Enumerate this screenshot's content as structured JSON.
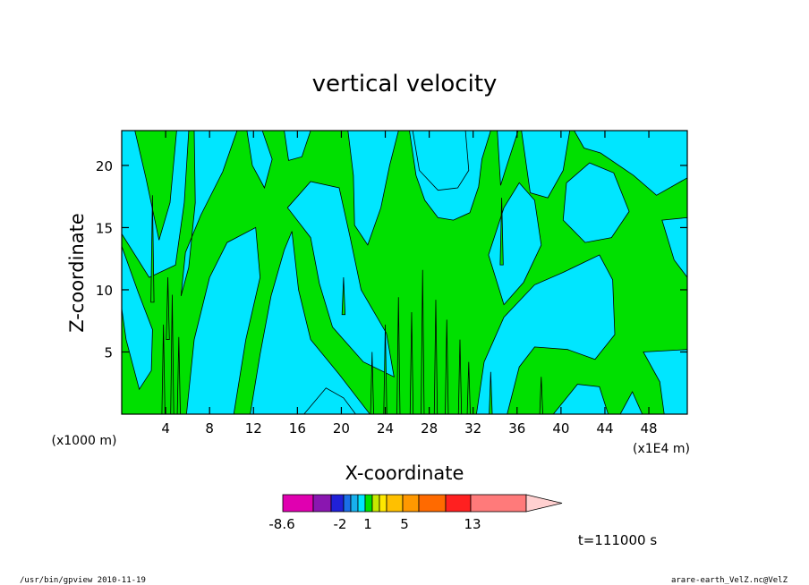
{
  "chart_data": {
    "type": "heatmap",
    "title": "vertical velocity",
    "xlabel": "X-coordinate",
    "ylabel": "Z-coordinate",
    "x_unit_label": "(x1E4 m)",
    "y_unit_label": "(x1000 m)",
    "xlim": [
      0,
      51.5
    ],
    "ylim": [
      0,
      22.8
    ],
    "x_ticks": [
      "4",
      "8",
      "12",
      "16",
      "20",
      "24",
      "28",
      "32",
      "36",
      "40",
      "44",
      "48"
    ],
    "y_ticks": [
      "5",
      "10",
      "15",
      "20"
    ],
    "levels": [
      {
        "name": "below -8.6",
        "color": "#e000b0"
      },
      {
        "name": "-8.6 to -5",
        "color": "#8a16b0"
      },
      {
        "name": "-5 to -3",
        "color": "#2020d8"
      },
      {
        "name": "-3 to -2",
        "color": "#1a6fe8"
      },
      {
        "name": "-2 to -1",
        "color": "#18b0ee"
      },
      {
        "name": "-1 to 0",
        "color": "#00e6ff"
      },
      {
        "name": "0 to 1",
        "color": "#00e000"
      },
      {
        "name": "1 to 2",
        "color": "#c8e800"
      },
      {
        "name": "2 to 3",
        "color": "#ffe800"
      },
      {
        "name": "3 to 4",
        "color": "#ffc000"
      },
      {
        "name": "4 to 5",
        "color": "#ff9800"
      },
      {
        "name": "5 to 7",
        "color": "#ff6a00"
      },
      {
        "name": "7 to 10",
        "color": "#ff2020"
      },
      {
        "name": "10 to 13",
        "color": "#ff7a7a"
      },
      {
        "name": "13 to 20",
        "color": "#ffbcbc"
      },
      {
        "name": "above 20",
        "color": "#ffd0d0"
      }
    ],
    "colorbar_labels": [
      "-8.6",
      "-2",
      "1",
      "5",
      "13"
    ],
    "negative_color": "#00e6ff",
    "positive_color": "#00e000",
    "grid": false
  },
  "time_label": "t=111000 s",
  "footer": {
    "left": "/usr/bin/gpview   2010-11-19",
    "right": "arare-earth_VelZ.nc@VelZ"
  }
}
